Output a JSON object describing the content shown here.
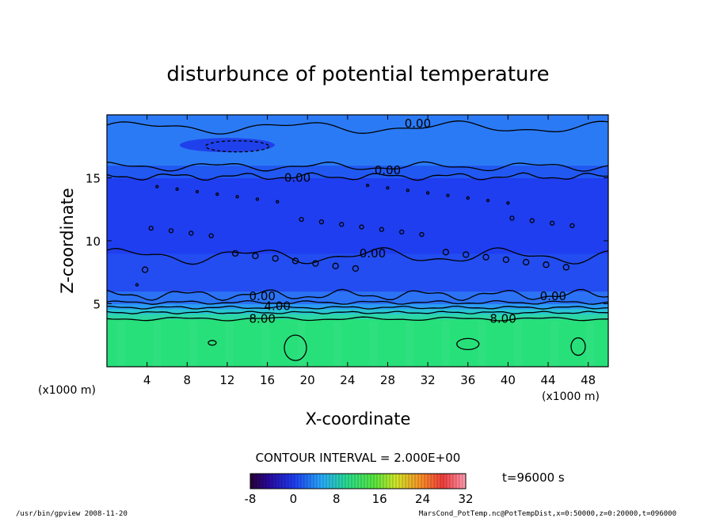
{
  "chart_data": {
    "type": "heatmap",
    "title": "disturbunce of potential temperature",
    "xlabel": "X-coordinate",
    "ylabel": "Z-coordinate",
    "x_unit": "(x1000 m)",
    "y_unit": "(x1000 m)",
    "xlim": [
      0,
      50
    ],
    "ylim": [
      0,
      20
    ],
    "x_ticks": [
      4,
      8,
      12,
      16,
      20,
      24,
      28,
      32,
      36,
      40,
      44,
      48
    ],
    "y_ticks": [
      5,
      10,
      15
    ],
    "contour_interval_text": "CONTOUR INTERVAL = 2.000E+00",
    "time_text": "t=96000 s",
    "colorbar": {
      "min": -8,
      "max": 32,
      "ticks": [
        -8,
        0,
        8,
        16,
        24,
        32
      ]
    },
    "layers": [
      {
        "z_from": 0.0,
        "z_to": 3.8,
        "value": 14,
        "color": "#27e07a"
      },
      {
        "z_from": 3.8,
        "z_to": 4.2,
        "value": 9,
        "color": "#2cd6a8"
      },
      {
        "z_from": 4.2,
        "z_to": 4.6,
        "value": 6,
        "color": "#29c4d2"
      },
      {
        "z_from": 4.6,
        "z_to": 5.0,
        "value": 3,
        "color": "#2a9df2"
      },
      {
        "z_from": 5.0,
        "z_to": 6.0,
        "value": 1,
        "color": "#2b72f5"
      },
      {
        "z_from": 6.0,
        "z_to": 9.0,
        "value": -1,
        "color": "#234df0"
      },
      {
        "z_from": 9.0,
        "z_to": 15.0,
        "value": -2,
        "color": "#1f3ef0"
      },
      {
        "z_from": 15.0,
        "z_to": 16.0,
        "value": -0.5,
        "color": "#2158f2"
      },
      {
        "z_from": 16.0,
        "z_to": 20.0,
        "value": 1,
        "color": "#2b7af5"
      }
    ],
    "contour_labels": [
      {
        "text": "0.00",
        "x": 31,
        "y": 19.3
      },
      {
        "text": "0.00",
        "x": 19,
        "y": 15.0
      },
      {
        "text": "0.00",
        "x": 28,
        "y": 15.6
      },
      {
        "text": "0.00",
        "x": 26.5,
        "y": 9.0
      },
      {
        "text": "0.00",
        "x": 15.5,
        "y": 5.6
      },
      {
        "text": "0.00",
        "x": 44.5,
        "y": 5.6
      },
      {
        "text": "4.00",
        "x": 17,
        "y": 4.8
      },
      {
        "text": "8.00",
        "x": 15.5,
        "y": 3.8
      },
      {
        "text": "8.00",
        "x": 39.5,
        "y": 3.8
      }
    ]
  },
  "footer": {
    "left": "/usr/bin/gpview   2008-11-20",
    "right": "MarsCond_PotTemp.nc@PotTempDist,x=0:50000,z=0:20000,t=096000"
  }
}
